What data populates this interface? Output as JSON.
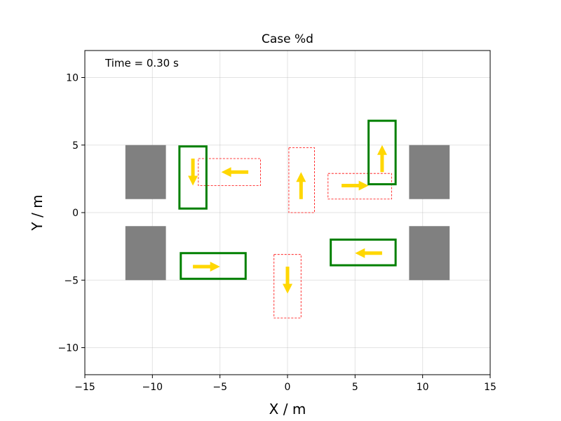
{
  "chart_data": {
    "type": "scatter",
    "title": "Case %d",
    "xlabel": "X / m",
    "ylabel": "Y / m",
    "xlim": [
      -15,
      15
    ],
    "ylim": [
      -12,
      12
    ],
    "xticks": [
      -15,
      -10,
      -5,
      0,
      5,
      10,
      15
    ],
    "yticks": [
      -10,
      -5,
      0,
      5,
      10
    ],
    "xtick_labels": [
      "−15",
      "−10",
      "−5",
      "0",
      "5",
      "10",
      "15"
    ],
    "ytick_labels": [
      "−10",
      "−5",
      "0",
      "5",
      "10"
    ],
    "grid": true,
    "annotation": "Time = 0.30 s",
    "colors": {
      "obstacle": "#808080",
      "vehicle": "#008000",
      "target": "#ff0000",
      "arrow": "#ffd700"
    },
    "obstacles": [
      {
        "x0": -12,
        "x1": -9,
        "y0": 1,
        "y1": 5
      },
      {
        "x0": -12,
        "x1": -9,
        "y0": -5,
        "y1": -1
      },
      {
        "x0": 9,
        "x1": 12,
        "y0": 1,
        "y1": 5
      },
      {
        "x0": 9,
        "x1": 12,
        "y0": -5,
        "y1": -1
      }
    ],
    "vehicles": [
      {
        "x0": -8,
        "x1": -6,
        "y0": 0.3,
        "y1": 4.9
      },
      {
        "x0": -7.9,
        "x1": -3.1,
        "y0": -4.9,
        "y1": -3
      },
      {
        "x0": 3.2,
        "x1": 8,
        "y0": -3.9,
        "y1": -2
      },
      {
        "x0": 6,
        "x1": 8,
        "y0": 2.1,
        "y1": 6.8
      }
    ],
    "targets": [
      {
        "x0": -6.6,
        "x1": -2,
        "y0": 2,
        "y1": 4
      },
      {
        "x0": 0.1,
        "x1": 2,
        "y0": 0,
        "y1": 4.8
      },
      {
        "x0": 3,
        "x1": 7.7,
        "y0": 1,
        "y1": 2.9
      },
      {
        "x0": -1,
        "x1": 1,
        "y0": -7.8,
        "y1": -3.1
      }
    ],
    "arrows": [
      {
        "x": -7,
        "y": 4,
        "dx": 0,
        "dy": -2
      },
      {
        "x": -2.9,
        "y": 3,
        "dx": -2,
        "dy": 0
      },
      {
        "x": 1,
        "y": 1,
        "dx": 0,
        "dy": 2
      },
      {
        "x": 4,
        "y": 2,
        "dx": 2,
        "dy": 0
      },
      {
        "x": 7,
        "y": 3,
        "dx": 0,
        "dy": 2
      },
      {
        "x": -7,
        "y": -4,
        "dx": 2,
        "dy": 0
      },
      {
        "x": 7,
        "y": -3,
        "dx": -2,
        "dy": 0
      },
      {
        "x": 0,
        "y": -4,
        "dx": 0,
        "dy": -2
      }
    ]
  }
}
